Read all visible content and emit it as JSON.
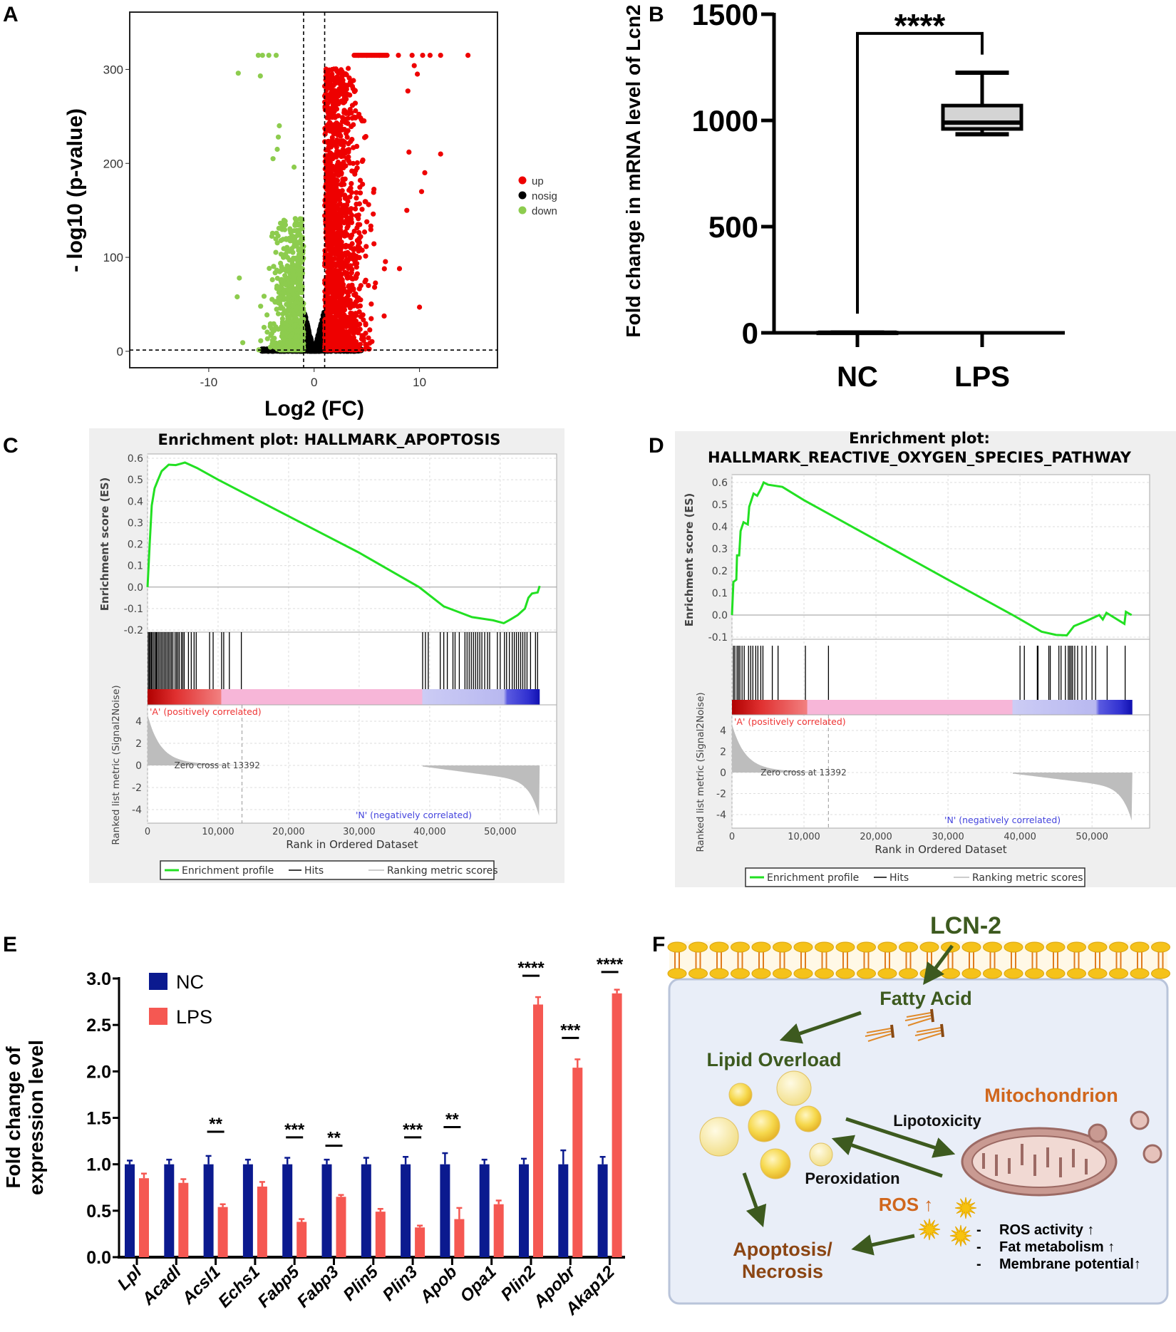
{
  "panels": {
    "a": "A",
    "b": "B",
    "c": "C",
    "d": "D",
    "e": "E",
    "f": "F"
  },
  "chart_data": [
    {
      "id": "volcano",
      "type": "scatter",
      "xlabel": "Log2 (FC)",
      "ylabel": "- log10 (p-value)",
      "xlim": [
        -17.5,
        17.4
      ],
      "ylim": [
        -17.5,
        361
      ],
      "xticks": [
        -10,
        0,
        10
      ],
      "yticks": [
        0,
        100,
        200,
        300
      ],
      "thresholds": {
        "log2fc": [
          -1,
          1
        ],
        "neg_log10_p": 1.3
      },
      "legend": {
        "position": "right",
        "entries": [
          {
            "label": "up",
            "color": "#ee0000"
          },
          {
            "label": "nosig",
            "color": "#000000"
          },
          {
            "label": "down",
            "color": "#8dcc4e"
          }
        ]
      },
      "cloud": {
        "up": {
          "count": 1700,
          "x_range": [
            1,
            15
          ],
          "y_max": 315
        },
        "down": {
          "count": 700,
          "x_range": [
            -7.5,
            -1
          ],
          "y_max": 240
        },
        "nosig": {
          "count": 1400,
          "x_range": [
            -5,
            4.5
          ],
          "y_max": 45
        }
      },
      "highlighted_points": {
        "down": [
          [
            -5.3,
            315
          ],
          [
            -4.9,
            315
          ],
          [
            -4.3,
            315
          ],
          [
            -3.6,
            315
          ],
          [
            -7.2,
            296
          ],
          [
            -5.1,
            293
          ],
          [
            -3.3,
            240
          ],
          [
            -3.4,
            228
          ],
          [
            -3.5,
            215
          ],
          [
            -3.9,
            205
          ],
          [
            -1.9,
            196
          ],
          [
            -7.3,
            58
          ],
          [
            -7.1,
            78
          ]
        ],
        "up": [
          [
            14.6,
            315
          ],
          [
            12.0,
            315
          ],
          [
            11.0,
            315
          ],
          [
            10.3,
            315
          ],
          [
            9.3,
            315
          ],
          [
            8.0,
            315
          ],
          [
            6.2,
            315
          ],
          [
            5.0,
            315
          ],
          [
            4.2,
            315
          ],
          [
            9.5,
            304
          ],
          [
            9.8,
            295
          ],
          [
            8.9,
            277
          ],
          [
            12.0,
            210
          ],
          [
            9.0,
            212
          ],
          [
            10.5,
            190
          ],
          [
            10.2,
            170
          ],
          [
            8.8,
            150
          ],
          [
            10.0,
            47
          ],
          [
            8.1,
            88
          ]
        ]
      }
    },
    {
      "id": "lcn2-box",
      "type": "box",
      "ylabel": "Fold change in mRNA level of Lcn2",
      "ylim": [
        0,
        1500
      ],
      "yticks": [
        0,
        500,
        1000,
        1500
      ],
      "categories": [
        "NC",
        "LPS"
      ],
      "boxes": [
        {
          "name": "NC",
          "min": 0.8,
          "q1": 0.9,
          "median": 1,
          "q3": 1.1,
          "max": 1.2
        },
        {
          "name": "LPS",
          "min": 935,
          "q1": 960,
          "median": 990,
          "q3": 1070,
          "max": 1225
        }
      ],
      "significance": {
        "label": "****",
        "bracket_y": 1410,
        "left_leg_bottom": 90,
        "right_leg_bottom": 1310
      }
    },
    {
      "id": "gsea-apoptosis",
      "type": "line",
      "title": "Enrichment plot: HALLMARK_APOPTOSIS",
      "title_lines": [
        "Enrichment plot: HALLMARK_APOPTOSIS"
      ],
      "ylabel": "Enrichment score (ES)",
      "metric_ylabel": "Ranked list metric (Signal2Noise)",
      "xlabel": "Rank in Ordered Dataset",
      "xlim": [
        0,
        58000
      ],
      "ylim": [
        -0.2,
        0.6
      ],
      "yticks": [
        -0.2,
        -0.1,
        0.0,
        0.1,
        0.2,
        0.3,
        0.4,
        0.5,
        0.6
      ],
      "metric_yticks": [
        -4,
        -2,
        0,
        2,
        4
      ],
      "xticks": [
        0,
        10000,
        20000,
        30000,
        40000,
        50000
      ],
      "xtick_labels": [
        "0",
        "10,000",
        "20,000",
        "30,000",
        "40,000",
        "50,000"
      ],
      "es_curve": [
        [
          0,
          0
        ],
        [
          300,
          0.2
        ],
        [
          600,
          0.38
        ],
        [
          1000,
          0.46
        ],
        [
          1500,
          0.5
        ],
        [
          2000,
          0.54
        ],
        [
          3000,
          0.57
        ],
        [
          4000,
          0.568
        ],
        [
          5300,
          0.58
        ],
        [
          7000,
          0.555
        ],
        [
          10000,
          0.5
        ],
        [
          20000,
          0.33
        ],
        [
          30000,
          0.16
        ],
        [
          38500,
          0
        ],
        [
          42000,
          -0.09
        ],
        [
          46000,
          -0.14
        ],
        [
          49000,
          -0.155
        ],
        [
          50500,
          -0.168
        ],
        [
          51500,
          -0.15
        ],
        [
          52500,
          -0.13
        ],
        [
          53500,
          -0.1
        ],
        [
          54000,
          -0.05
        ],
        [
          54500,
          -0.03
        ],
        [
          55300,
          -0.025
        ],
        [
          55600,
          0.005
        ]
      ],
      "hits": [
        100,
        250,
        400,
        550,
        700,
        900,
        1100,
        1250,
        1400,
        1600,
        1800,
        2000,
        2200,
        2400,
        2600,
        2800,
        3000,
        3200,
        3400,
        3600,
        3900,
        4100,
        4300,
        4500,
        4800,
        5000,
        5200,
        5800,
        6200,
        6600,
        6900,
        8800,
        9300,
        10500,
        10800,
        11600,
        13300,
        39000,
        39400,
        39800,
        41500,
        42000,
        42500,
        43300,
        43600,
        44200,
        45000,
        45300,
        45600,
        45900,
        46200,
        46500,
        46800,
        47100,
        47400,
        47800,
        48200,
        48500,
        49600,
        50000,
        50600,
        50900,
        51300,
        51700,
        52000,
        52300,
        52600,
        52900,
        53200,
        53500,
        53800,
        54300,
        55000,
        55300
      ],
      "zero_cross_label": "Zero cross at 13392",
      "zero_cross": 13392,
      "dataset_size": 55600,
      "metric_range": [
        -4.8,
        4.6
      ],
      "pos_label": "'A' (positively correlated)",
      "neg_label": "'N' (negatively correlated)",
      "legend": [
        "Enrichment profile",
        "Hits",
        "Ranking metric scores"
      ]
    },
    {
      "id": "gsea-ros",
      "type": "line",
      "title": "Enrichment plot: HALLMARK_REACTIVE_OXYGEN_SPECIES_PATHWAY",
      "title_lines": [
        "Enrichment plot:",
        "HALLMARK_REACTIVE_OXYGEN_SPECIES_PATHWAY"
      ],
      "ylabel": "Enrichment score (ES)",
      "metric_ylabel": "Ranked list metric (Signal2Noise)",
      "xlabel": "Rank in Ordered Dataset",
      "xlim": [
        0,
        58000
      ],
      "ylim": [
        -0.1,
        0.6
      ],
      "yticks": [
        -0.1,
        0.0,
        0.1,
        0.2,
        0.3,
        0.4,
        0.5,
        0.6
      ],
      "metric_yticks": [
        -4,
        -2,
        0,
        2,
        4
      ],
      "xticks": [
        0,
        10000,
        20000,
        30000,
        40000,
        50000
      ],
      "xtick_labels": [
        "0",
        "10,000",
        "20,000",
        "30,000",
        "40,000",
        "50,000"
      ],
      "es_curve": [
        [
          0,
          0
        ],
        [
          200,
          0.15
        ],
        [
          600,
          0.16
        ],
        [
          700,
          0.27
        ],
        [
          1000,
          0.27
        ],
        [
          1200,
          0.38
        ],
        [
          1600,
          0.42
        ],
        [
          2200,
          0.41
        ],
        [
          2400,
          0.49
        ],
        [
          3000,
          0.55
        ],
        [
          3500,
          0.54
        ],
        [
          4000,
          0.57
        ],
        [
          4400,
          0.6
        ],
        [
          5000,
          0.59
        ],
        [
          7000,
          0.58
        ],
        [
          10000,
          0.52
        ],
        [
          20000,
          0.34
        ],
        [
          30000,
          0.16
        ],
        [
          39000,
          0
        ],
        [
          43000,
          -0.075
        ],
        [
          45000,
          -0.09
        ],
        [
          46500,
          -0.092
        ],
        [
          47500,
          -0.05
        ],
        [
          49000,
          -0.03
        ],
        [
          51000,
          0
        ],
        [
          51500,
          -0.02
        ],
        [
          52000,
          0.01
        ],
        [
          54500,
          -0.04
        ],
        [
          54700,
          0.015
        ],
        [
          55500,
          0.0
        ]
      ],
      "hits": [
        200,
        400,
        700,
        900,
        1100,
        1400,
        1700,
        2300,
        2600,
        2900,
        3300,
        3600,
        4000,
        4300,
        5600,
        6400,
        10200,
        13400,
        40000,
        40600,
        42400,
        42500,
        44000,
        44200,
        45400,
        45700,
        46300,
        46700,
        46900,
        47100,
        47300,
        47600,
        48000,
        48600,
        49200,
        50000,
        50500,
        52100,
        54600
      ],
      "zero_cross_label": "Zero cross at 13392",
      "zero_cross": 13392,
      "dataset_size": 55600,
      "metric_range": [
        -4.8,
        4.6
      ],
      "pos_label": "'A' (positively correlated)",
      "neg_label": "'N' (negatively correlated)",
      "legend": [
        "Enrichment profile",
        "Hits",
        "Ranking metric scores"
      ]
    },
    {
      "id": "expression-bars",
      "type": "bar",
      "ylabel": [
        "Fold change of",
        "expression level"
      ],
      "ylim": [
        0,
        3.0
      ],
      "yticks": [
        "0.0",
        "0.5",
        "1.0",
        "1.5",
        "2.0",
        "2.5",
        "3.0"
      ],
      "categories": [
        "Lpl",
        "Acadl",
        "Acsl1",
        "Echs1",
        "Fabp5",
        "Fabp3",
        "Plin5",
        "Plin3",
        "Apob",
        "Opa1",
        "Plin2",
        "Apobr",
        "Akap12"
      ],
      "series": [
        {
          "name": "NC",
          "color": "#0b1a8f",
          "values": [
            1,
            1,
            1,
            1,
            1,
            1,
            1,
            1,
            1,
            1,
            1,
            1,
            1
          ],
          "errors": [
            0.04,
            0.05,
            0.09,
            0.05,
            0.07,
            0.05,
            0.07,
            0.08,
            0.12,
            0.05,
            0.06,
            0.15,
            0.08
          ]
        },
        {
          "name": "LPS",
          "color": "#f55852",
          "values": [
            0.85,
            0.8,
            0.54,
            0.76,
            0.38,
            0.65,
            0.49,
            0.32,
            0.41,
            0.57,
            2.72,
            2.04,
            2.84
          ],
          "errors": [
            0.05,
            0.04,
            0.03,
            0.05,
            0.03,
            0.02,
            0.03,
            0.02,
            0.12,
            0.04,
            0.08,
            0.09,
            0.04
          ]
        }
      ],
      "significance": [
        {
          "category": "Acsl1",
          "label": "**",
          "y": 1.35
        },
        {
          "category": "Fabp5",
          "label": "***",
          "y": 1.29
        },
        {
          "category": "Fabp3",
          "label": "**",
          "y": 1.2
        },
        {
          "category": "Plin3",
          "label": "***",
          "y": 1.29
        },
        {
          "category": "Apob",
          "label": "**",
          "y": 1.4
        },
        {
          "category": "Plin2",
          "label": "****",
          "y": 3.03
        },
        {
          "category": "Apobr",
          "label": "***",
          "y": 2.36
        },
        {
          "category": "Akap12",
          "label": "****",
          "y": 3.07
        }
      ],
      "legend": {
        "position": "top-left"
      }
    }
  ],
  "diagram": {
    "lcn2": "LCN-2",
    "fatty_acid": "Fatty Acid",
    "lipid_overload": "Lipid Overload",
    "mitochondrion": "Mitochondrion",
    "lipotoxicity": "Lipotoxicity",
    "peroxidation": "Peroxidation",
    "ros": "ROS ↑",
    "apoptosis_1": "Apoptosis/",
    "apoptosis_2": "Necrosis",
    "bullets": [
      "ROS activity ↑",
      "Fat metabolism ↑",
      "Membrane potential↑"
    ],
    "bullet_dash": "-",
    "colors": {
      "green": "#3d5a1f",
      "orange": "#d0661c",
      "brown": "#8b4513",
      "cell": "#e9eef8"
    }
  }
}
